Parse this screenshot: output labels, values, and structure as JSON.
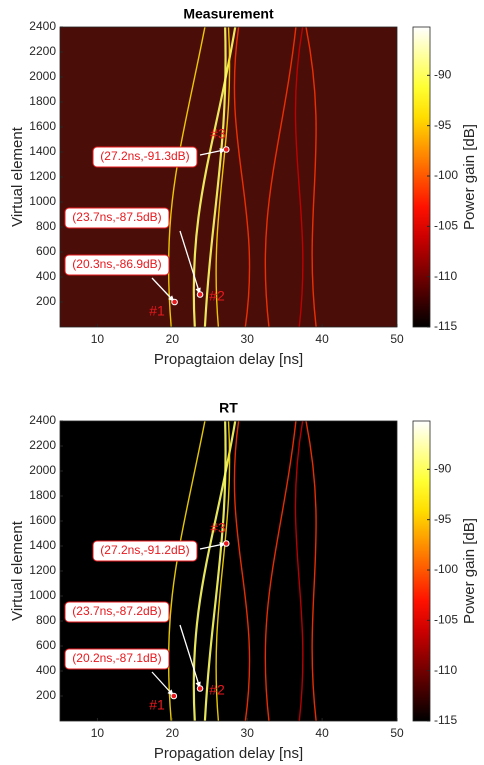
{
  "chart_data": [
    {
      "type": "heatmap",
      "title": "Measurement",
      "xlabel": "Propagtaion delay [ns]",
      "ylabel": "Virtual element",
      "xlim": [
        5,
        50
      ],
      "xticks": [
        10,
        20,
        30,
        40,
        50
      ],
      "ylim": [
        0,
        2400
      ],
      "yticks": [
        200,
        400,
        600,
        800,
        1000,
        1200,
        1400,
        1600,
        1800,
        2000,
        2200,
        2400
      ],
      "colormap": "hot",
      "background": "#4a0d07",
      "colorbar": {
        "label": "Power gain [dB]",
        "lim": [
          -115,
          -85.2
        ],
        "ticks": [
          -115,
          -110,
          -105,
          -100,
          -95,
          -90
        ]
      },
      "annotations": [
        {
          "x": 20.3,
          "y": 200,
          "label": "(20.3ns,-86.9dB)",
          "marker": "#1"
        },
        {
          "x": 23.7,
          "y": 260,
          "label": "(23.7ns,-87.5dB)",
          "marker": "#2"
        },
        {
          "x": 27.2,
          "y": 1420,
          "label": "(27.2ns,-91.3dB)",
          "marker": "#3"
        }
      ]
    },
    {
      "type": "heatmap",
      "title": "RT",
      "xlabel": "Propagation delay [ns]",
      "ylabel": "Virtual element",
      "xlim": [
        5,
        50
      ],
      "xticks": [
        10,
        20,
        30,
        40,
        50
      ],
      "ylim": [
        0,
        2400
      ],
      "yticks": [
        200,
        400,
        600,
        800,
        1000,
        1200,
        1400,
        1600,
        1800,
        2000,
        2200,
        2400
      ],
      "colormap": "hot",
      "background": "#000000",
      "colorbar": {
        "label": "Power gain [dB]",
        "lim": [
          -115,
          -85.2
        ],
        "ticks": [
          -115,
          -110,
          -105,
          -100,
          -95,
          -90
        ]
      },
      "annotations": [
        {
          "x": 20.2,
          "y": 200,
          "label": "(20.2ns,-87.1dB)",
          "marker": "#1"
        },
        {
          "x": 23.7,
          "y": 260,
          "label": "(23.7ns,-87.2dB)",
          "marker": "#2"
        },
        {
          "x": 27.2,
          "y": 1420,
          "label": "(27.2ns,-91.2dB)",
          "marker": "#3"
        }
      ]
    }
  ]
}
